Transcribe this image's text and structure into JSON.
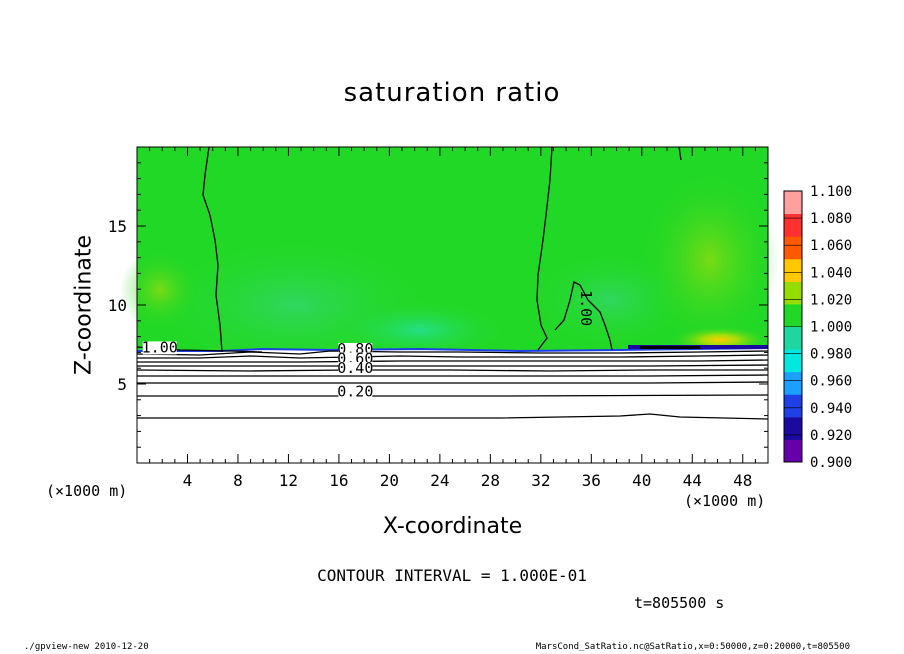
{
  "chart_data": {
    "type": "heatmap",
    "title": "saturation ratio",
    "xlabel": "X-coordinate",
    "ylabel": "Z-coordinate",
    "x_unit": "(×1000 m)",
    "x_unit_right": "(×1000 m)",
    "x_ticks": [
      4,
      8,
      12,
      16,
      20,
      24,
      28,
      32,
      36,
      40,
      44,
      48
    ],
    "y_ticks": [
      5,
      10,
      15
    ],
    "xlim": [
      0,
      50
    ],
    "ylim": [
      0,
      20
    ],
    "colorbar": {
      "levels": [
        "0.900",
        "0.920",
        "0.940",
        "0.960",
        "0.980",
        "1.000",
        "1.020",
        "1.040",
        "1.060",
        "1.080",
        "1.100"
      ],
      "colors": [
        "#6600aa",
        "#1a0aa0",
        "#1e40e6",
        "#1aa0ff",
        "#00e8e0",
        "#1ed6a0",
        "#22d826",
        "#96dc00",
        "#ffc800",
        "#ff5a00",
        "#ff3030",
        "#ffa0a0"
      ]
    },
    "contour_labels": [
      {
        "text": "1.00",
        "x": 1.8,
        "z": 7.0
      },
      {
        "text": "0.80",
        "x": 17.3,
        "z": 6.9
      },
      {
        "text": "0.60",
        "x": 17.3,
        "z": 6.3
      },
      {
        "text": "0.40",
        "x": 17.3,
        "z": 5.7
      },
      {
        "text": "0.20",
        "x": 17.3,
        "z": 4.2
      },
      {
        "text": "1.00",
        "x": 35.2,
        "z": 9.8
      }
    ],
    "contour_interval": "CONTOUR INTERVAL = 1.000E-01",
    "time": "t=805500 s"
  },
  "footer": {
    "left": "./gpview-new   2010-12-20",
    "right": "MarsCond_SatRatio.nc@SatRatio,x=0:50000,z=0:20000,t=805500"
  }
}
